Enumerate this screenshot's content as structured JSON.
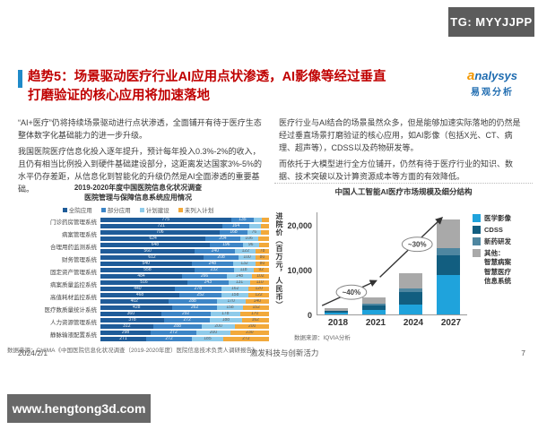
{
  "watermarks": {
    "top_right": "TG: MYYJJPP",
    "bottom_left": "www.hengtong3d.com"
  },
  "logo": {
    "brand_first": "a",
    "brand_rest": "nalysys",
    "brand_cn": "易观分析"
  },
  "title": {
    "line1": "趋势5：场景驱动医疗行业AI应用点状渗透，AI影像等经过垂直",
    "line2": "打磨验证的核心应用将加速落地"
  },
  "left_column": {
    "p1": "“AI+医疗”仍将持续场景驱动进行点状渗透，全面铺开有待于医疗生态整体数字化基础能力的进一步升级。",
    "p2": "我国医院医疗信息化投入逐年提升，预计每年投入0.3%-2%的收入，且仍有相当比例投入到硬件基础建设部分，这距离发达国家3%-5%的水平仍存差距，从信息化到智能化的升级仍然是AI全面渗透的重要基础。"
  },
  "right_column": {
    "p1": "医疗行业与AI结合的场景虽然众多，但是能够加速实际落地的仍然是经过垂直场景打磨验证的核心应用，如AI影像（包括X光、CT、病理、超声等），CDSS以及药物研发等。",
    "p2": "而依托于大模型进行全方位铺开，仍然有待于医疗行业的知识、数据、技术突破以及计算资源成本等方面的有效降低。"
  },
  "footer": {
    "date": "2024/2/1",
    "slogan": "激发科技与创新活力",
    "page": "7"
  },
  "chart_data": [
    {
      "type": "bar",
      "orientation": "horizontal",
      "stacked": true,
      "title": "2019-2020年度中国医院信息化状况调查",
      "subtitle": "医院管理与保障信息系统应用情况",
      "legend": [
        "全院应用",
        "部分应用",
        "计划建设",
        "未列入计划"
      ],
      "colors": [
        "#1f5c99",
        "#3d85c6",
        "#8fcbea",
        "#f2a93b"
      ],
      "categories": [
        "门诊药房管理系统",
        "病案管理系统",
        "合理用药监测系统",
        "财务管理系统",
        "固定资产管理系统",
        "病案质量监控系统",
        "高值耗材监控系统",
        "医疗数质量统计系统",
        "人力资源管理系统",
        "静脉输液配置系统"
      ],
      "rows": [
        {
          "category": "门诊药房管理系统",
          "bars": [
            [
              775,
              135,
              50,
              40
            ],
            [
              721,
              164,
              66,
              49
            ]
          ]
        },
        {
          "category": "病案管理系统",
          "bars": [
            [
              706,
              168,
              76,
              50
            ],
            [
              624,
              204,
              106,
              66
            ]
          ]
        },
        {
          "category": "合理用药监测系统",
          "bars": [
            [
              648,
              196,
              96,
              60
            ],
            [
              560,
              240,
              122,
              78
            ]
          ]
        },
        {
          "category": "财务管理系统",
          "bars": [
            [
              612,
              208,
              100,
              80
            ],
            [
              540,
              248,
              132,
              80
            ]
          ]
        },
        {
          "category": "固定资产管理系统",
          "bars": [
            [
              558,
              232,
              118,
              92
            ],
            [
              484,
              266,
              148,
              102
            ]
          ]
        },
        {
          "category": "病案质量监控系统",
          "bars": [
            [
              516,
              243,
              131,
              110
            ],
            [
              440,
              278,
              162,
              120
            ]
          ]
        },
        {
          "category": "高值耗材监控系统",
          "bars": [
            [
              468,
              252,
              158,
              122
            ],
            [
              402,
              288,
              170,
              140
            ]
          ]
        },
        {
          "category": "医疗数质量统计系统",
          "bars": [
            [
              428,
              262,
              158,
              152
            ],
            [
              360,
              292,
              178,
              170
            ]
          ]
        },
        {
          "category": "人力资源管理系统",
          "bars": [
            [
              378,
              272,
              188,
              162
            ],
            [
              312,
              288,
              200,
              200
            ]
          ]
        },
        {
          "category": "静脉输液配置系统",
          "bars": [
            [
              298,
              272,
              200,
              230
            ],
            [
              271,
              272,
              185,
              272
            ]
          ]
        }
      ],
      "source": "数据来源：CHIMA《中国医院信息化状况调查（2019-2020年度）医院信息技术负责人调研报告》"
    },
    {
      "type": "bar",
      "stacked": true,
      "title": "中国人工智能AI医疗市场规模及细分结构",
      "ylabel": "进院价（百万元，人民币）",
      "ylim": [
        0,
        23000
      ],
      "yticks": [
        20000,
        10000,
        0
      ],
      "ytick_labels": [
        "20,000",
        "10,000",
        "0"
      ],
      "categories": [
        "2018",
        "2021",
        "2024",
        "2027"
      ],
      "series": [
        {
          "name": "医学影像",
          "color": "#1fa3dc",
          "values": [
            300,
            900,
            2200,
            8700
          ]
        },
        {
          "name": "CDSS",
          "color": "#125e80",
          "values": [
            450,
            1100,
            2800,
            4500
          ]
        },
        {
          "name": "新药研发",
          "color": "#4e86a0",
          "values": [
            100,
            300,
            700,
            1600
          ]
        },
        {
          "name": "其他",
          "color": "#a9a9a9",
          "values": [
            450,
            1500,
            3500,
            6400
          ]
        }
      ],
      "legend": [
        "医学影像",
        "CDSS",
        "新药研发",
        "其他：\n智慧病案\n智慧医疗\n信息系统"
      ],
      "annotations": [
        {
          "label": "~40%",
          "between": [
            "2018",
            "2021"
          ]
        },
        {
          "label": "~30%",
          "between": [
            "2021",
            "2027"
          ]
        }
      ],
      "source": "数据来源：IQVIA分析"
    }
  ]
}
